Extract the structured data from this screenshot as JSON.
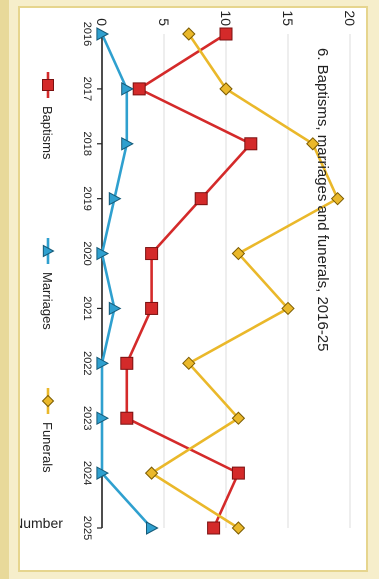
{
  "chart_data": {
    "type": "line",
    "title": "6. Baptisms, marriages and funerals, 2016-25",
    "ylabel": "Number",
    "xlabel": "",
    "categories": [
      "2016",
      "2017",
      "2018",
      "2019",
      "2020",
      "2021",
      "2022",
      "2023",
      "2024",
      "2025"
    ],
    "ylim": [
      0,
      20
    ],
    "yticks": [
      "0",
      "5",
      "10",
      "15",
      "20"
    ],
    "grid": true,
    "legend_position": "bottom",
    "orientation": "rotated 90° clockwise",
    "series": [
      {
        "name": "Baptisms",
        "color": "#d42a2a",
        "marker": "square",
        "values": [
          10,
          3,
          12,
          8,
          4,
          4,
          2,
          2,
          11,
          9
        ]
      },
      {
        "name": "Marriages",
        "color": "#2fa0cf",
        "marker": "triangle",
        "values": [
          0,
          2,
          2,
          1,
          0,
          1,
          0,
          0,
          0,
          4
        ]
      },
      {
        "name": "Funerals",
        "color": "#eab82a",
        "marker": "diamond",
        "values": [
          7,
          10,
          17,
          19,
          11,
          15,
          7,
          11,
          4,
          11
        ]
      }
    ]
  }
}
